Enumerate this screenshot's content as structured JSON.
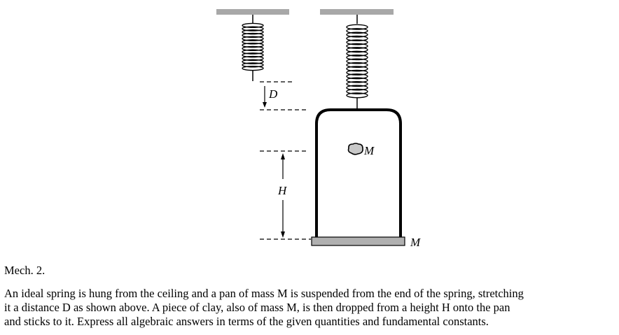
{
  "figure": {
    "labels": {
      "stretch": "D",
      "height": "H",
      "clay_mass": "M",
      "pan_mass": "M"
    }
  },
  "problem": {
    "heading": "Mech. 2.",
    "lines": [
      "An ideal spring is hung from the ceiling and a pan of mass M is suspended from the end of the spring, stretching",
      "it a distance D as shown above. A piece of clay, also of mass M, is then dropped from a height H onto the pan",
      "and sticks to it. Express all algebraic answers in terms of the given quantities and fundamental constants."
    ]
  }
}
